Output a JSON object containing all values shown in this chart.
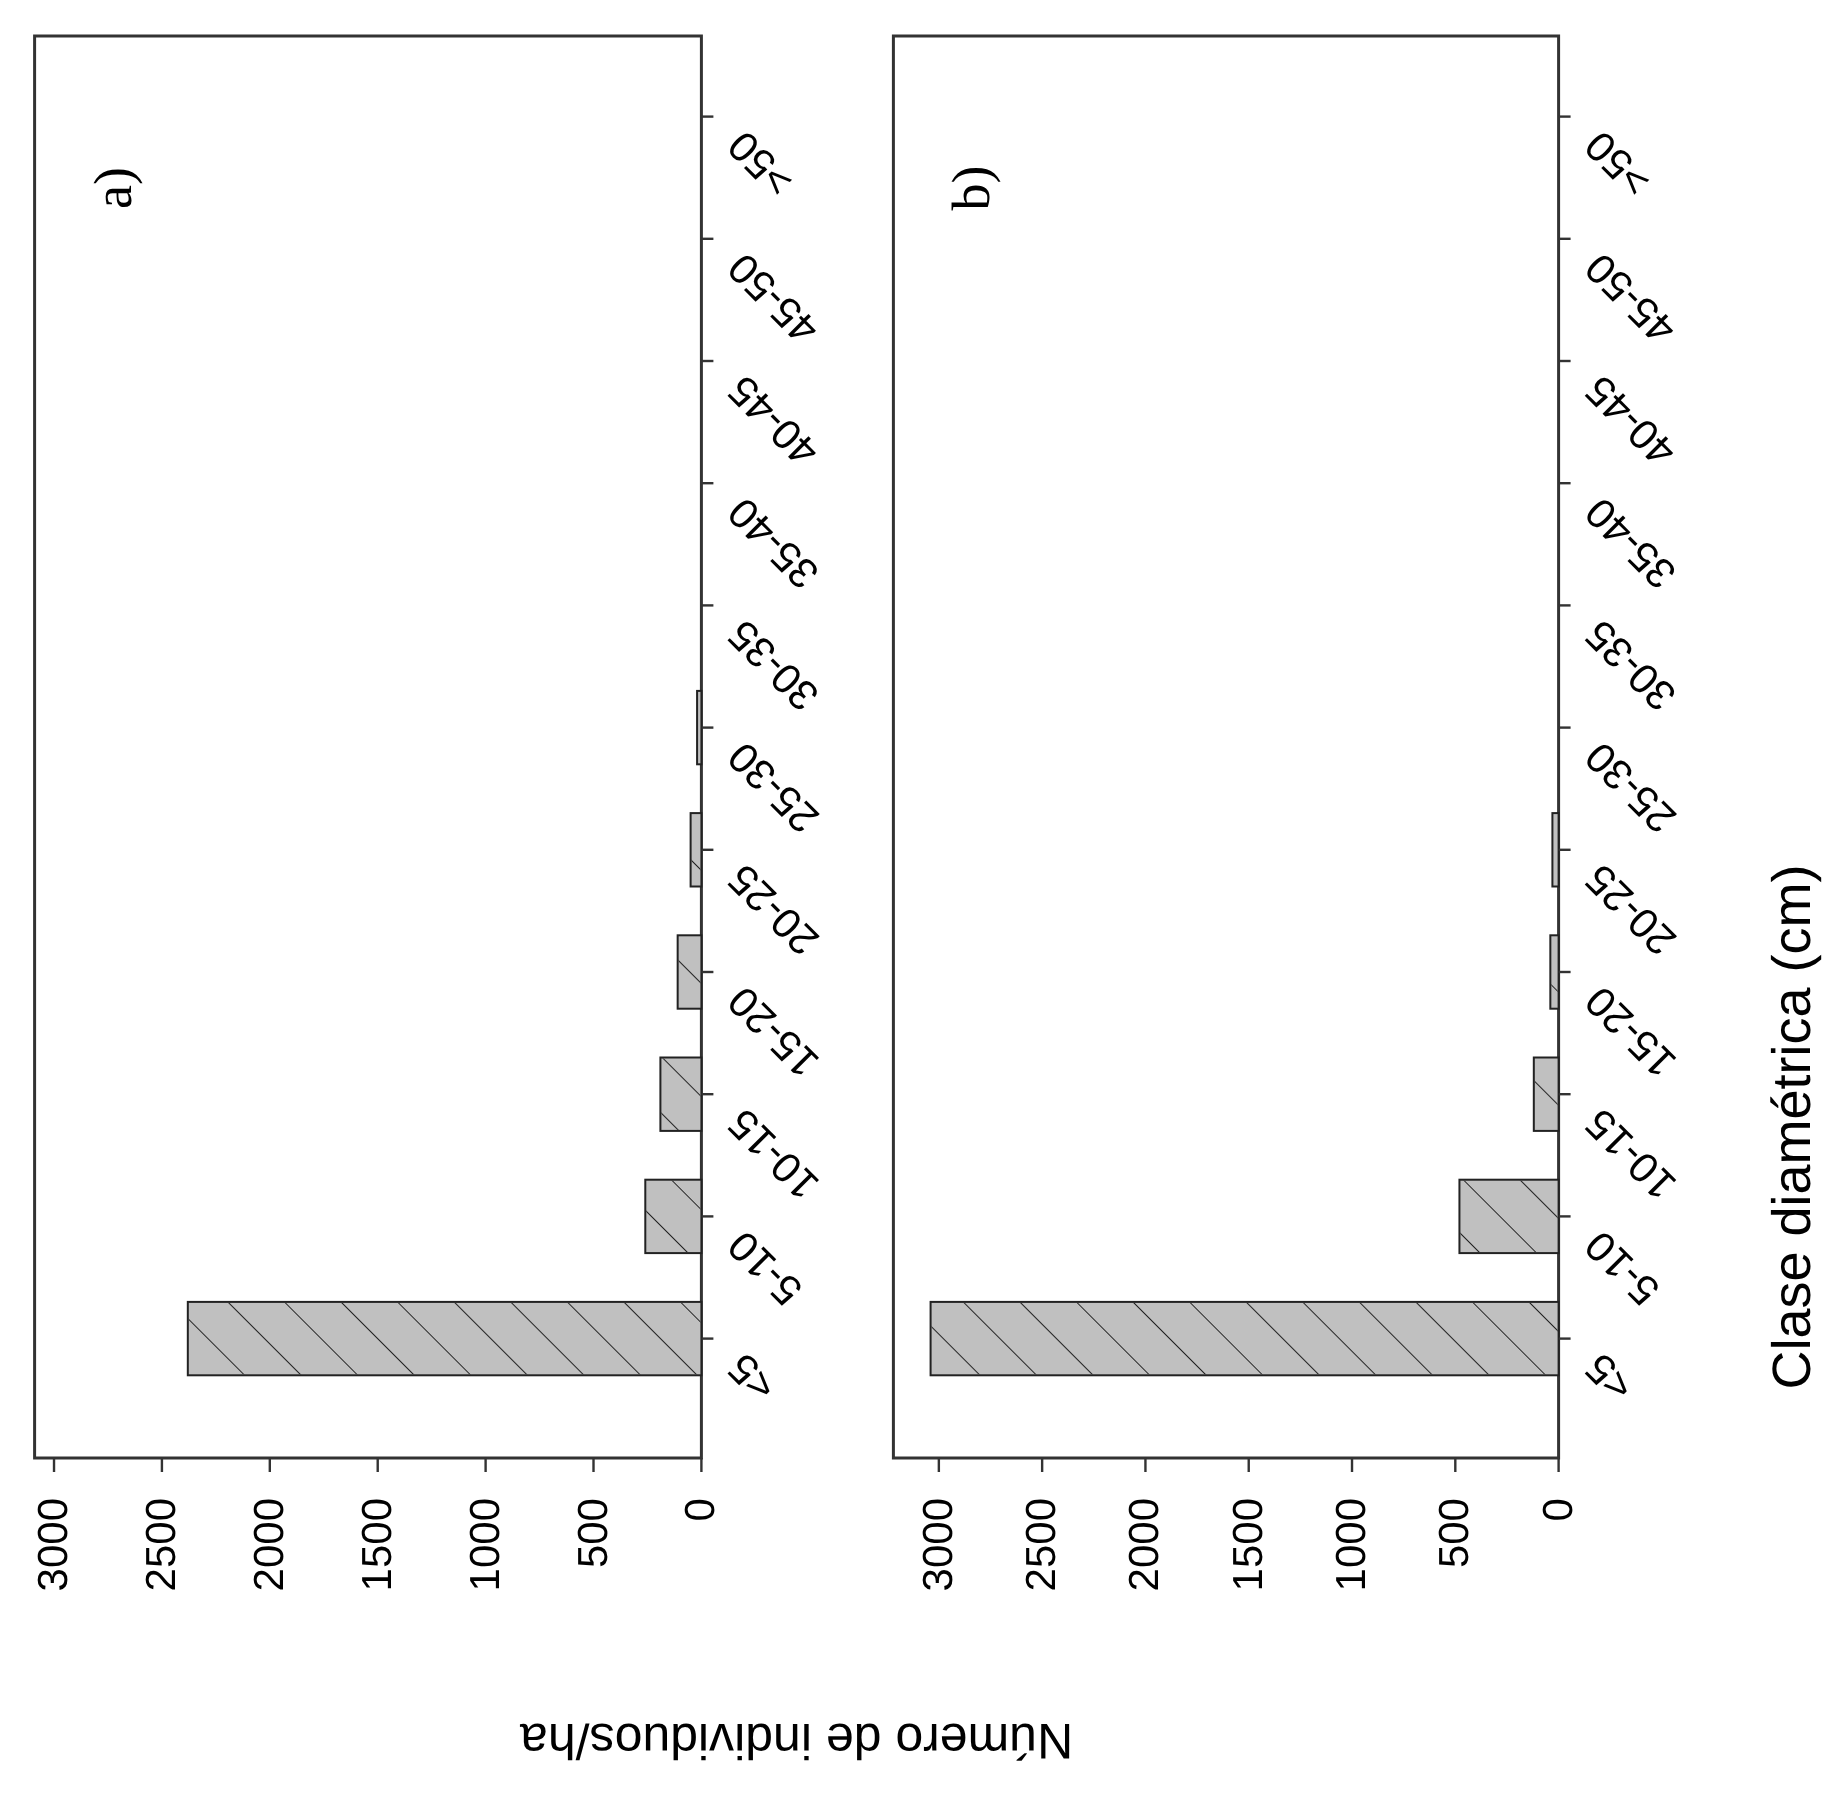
{
  "chart_data": [
    {
      "type": "bar",
      "orientation": "horizontal",
      "title": "a)",
      "xlabel": "Número de individuos/ha",
      "categories": [
        ">50",
        "45-50",
        "40-45",
        "35-40",
        "30-35",
        "25-30",
        "20-25",
        "15-20",
        "10-15",
        "5-10",
        "<5"
      ],
      "values": [
        0,
        0,
        0,
        0,
        0,
        20,
        50,
        110,
        190,
        260,
        2380
      ],
      "color": "#c0c0c0",
      "xlim": [
        3090,
        0
      ],
      "xticks": [
        3000,
        2500,
        2000,
        1500,
        1000,
        500,
        0
      ]
    },
    {
      "type": "bar",
      "orientation": "horizontal",
      "title": "b)",
      "ylabel": "Clase diamétrica (cm)",
      "categories": [
        ">50",
        "45-50",
        "40-45",
        "35-40",
        "30-35",
        "25-30",
        "20-25",
        "15-20",
        "10-15",
        "5-10",
        "<5"
      ],
      "values": [
        0,
        0,
        0,
        0,
        0,
        0,
        30,
        40,
        120,
        480,
        3040
      ],
      "color": "#c0c0c0",
      "xlim": [
        3220,
        0
      ],
      "xticks": [
        3000,
        2500,
        2000,
        1500,
        1000,
        500,
        0
      ]
    }
  ]
}
